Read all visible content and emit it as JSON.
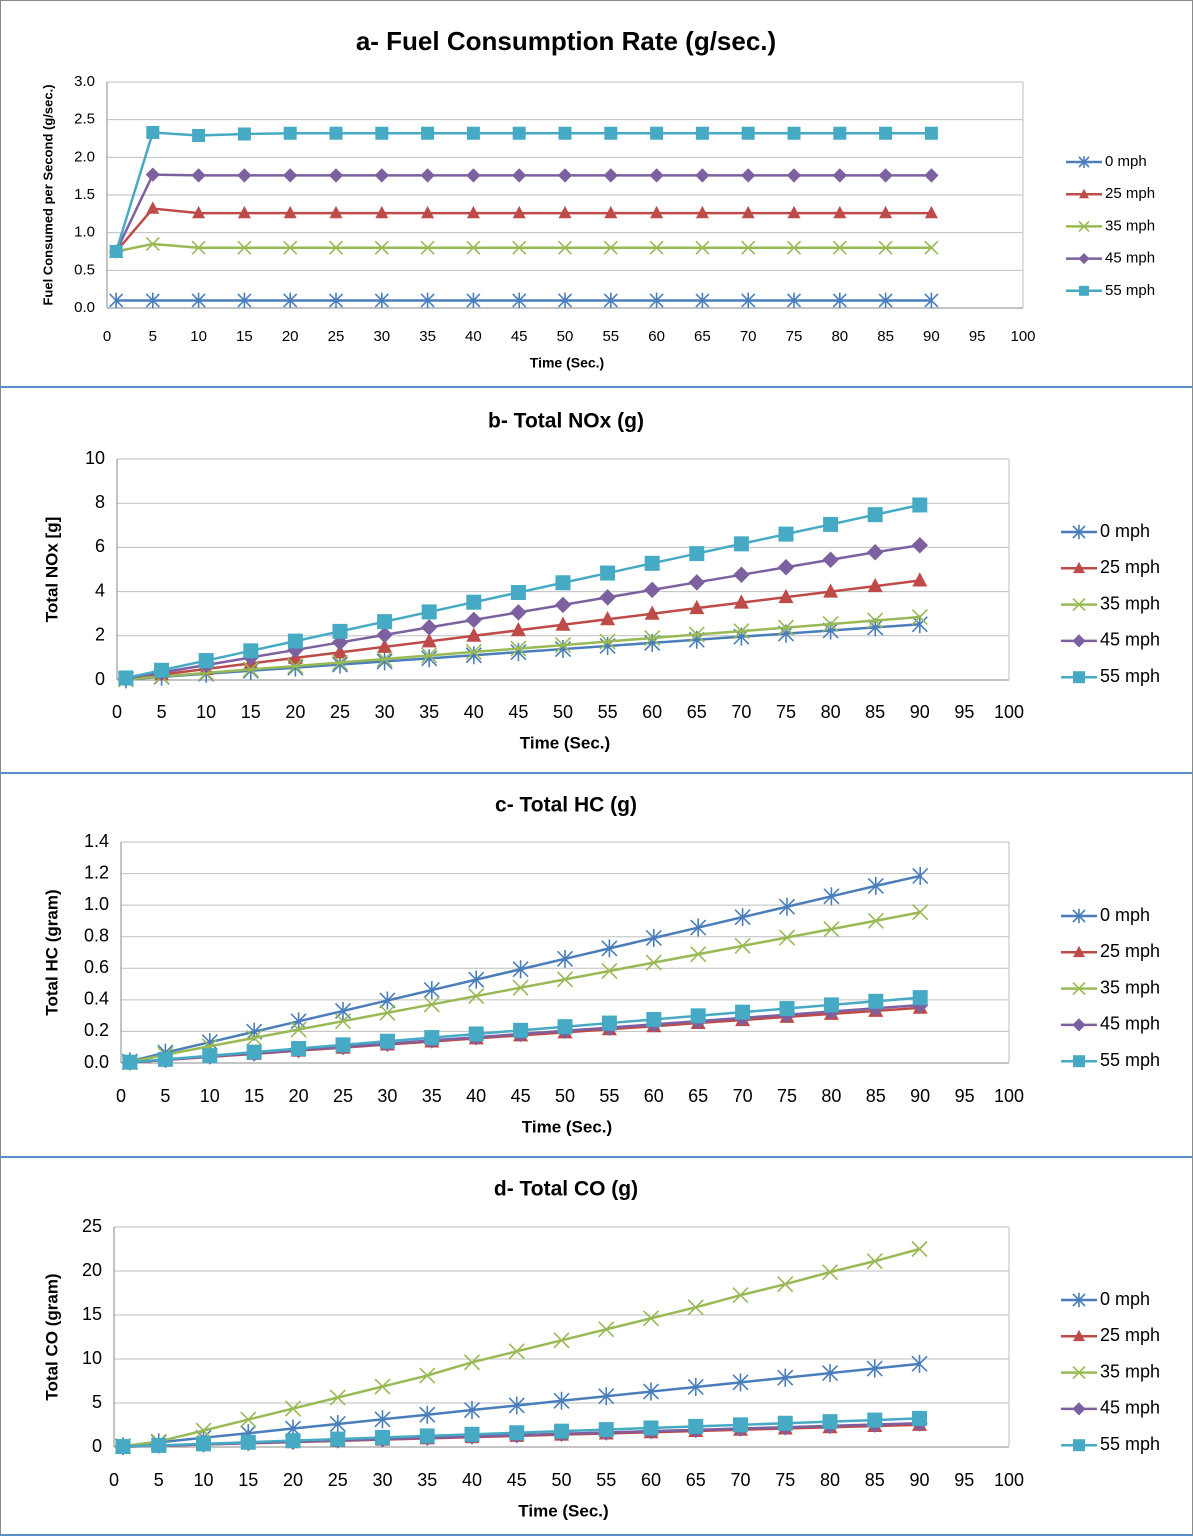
{
  "colors": {
    "0 mph": "#4a7ebb",
    "25 mph": "#be4b48",
    "35 mph": "#98b954",
    "45 mph": "#7d60a0",
    "55 mph": "#46aac5"
  },
  "chart_data": [
    {
      "type": "line",
      "title": "a- Fuel Consumption Rate (g/sec.)",
      "xlabel": "Time (Sec.)",
      "ylabel": "Fuel Consumed per Second (g/sec.)",
      "xlim": [
        0,
        100
      ],
      "ylim": [
        0,
        3
      ],
      "xticks": [
        "0",
        "5",
        "10",
        "15",
        "20",
        "25",
        "30",
        "35",
        "40",
        "45",
        "50",
        "55",
        "60",
        "65",
        "70",
        "75",
        "80",
        "85",
        "90",
        "95",
        "100"
      ],
      "yticks": [
        "0.0",
        "0.5",
        "1.0",
        "1.5",
        "2.0",
        "2.5",
        "3.0"
      ],
      "grid": true,
      "legend": "right",
      "x": [
        1,
        5,
        10,
        15,
        20,
        25,
        30,
        35,
        40,
        45,
        50,
        55,
        60,
        65,
        70,
        75,
        80,
        85,
        90
      ],
      "series": [
        {
          "name": "0 mph",
          "marker": "asterisk",
          "values": [
            0.1,
            0.1,
            0.1,
            0.1,
            0.1,
            0.1,
            0.1,
            0.1,
            0.1,
            0.1,
            0.1,
            0.1,
            0.1,
            0.1,
            0.1,
            0.1,
            0.1,
            0.1,
            0.1
          ]
        },
        {
          "name": "25 mph",
          "marker": "triangle",
          "values": [
            0.75,
            1.32,
            1.26,
            1.26,
            1.26,
            1.26,
            1.26,
            1.26,
            1.26,
            1.26,
            1.26,
            1.26,
            1.26,
            1.26,
            1.26,
            1.26,
            1.26,
            1.26,
            1.26
          ]
        },
        {
          "name": "35 mph",
          "marker": "x",
          "values": [
            0.75,
            0.85,
            0.8,
            0.8,
            0.8,
            0.8,
            0.8,
            0.8,
            0.8,
            0.8,
            0.8,
            0.8,
            0.8,
            0.8,
            0.8,
            0.8,
            0.8,
            0.8,
            0.8
          ]
        },
        {
          "name": "45 mph",
          "marker": "diamond",
          "values": [
            0.75,
            1.77,
            1.76,
            1.76,
            1.76,
            1.76,
            1.76,
            1.76,
            1.76,
            1.76,
            1.76,
            1.76,
            1.76,
            1.76,
            1.76,
            1.76,
            1.76,
            1.76,
            1.76
          ]
        },
        {
          "name": "55 mph",
          "marker": "square",
          "values": [
            0.75,
            2.33,
            2.29,
            2.31,
            2.32,
            2.32,
            2.32,
            2.32,
            2.32,
            2.32,
            2.32,
            2.32,
            2.32,
            2.32,
            2.32,
            2.32,
            2.32,
            2.32,
            2.32
          ]
        }
      ]
    },
    {
      "type": "line",
      "title": "b- Total NOx (g)",
      "xlabel": "Time (Sec.)",
      "ylabel": "Total NOx [g]",
      "xlim": [
        0,
        100
      ],
      "ylim": [
        0,
        10
      ],
      "xticks": [
        "0",
        "5",
        "10",
        "15",
        "20",
        "25",
        "30",
        "35",
        "40",
        "45",
        "50",
        "55",
        "60",
        "65",
        "70",
        "75",
        "80",
        "85",
        "90",
        "95",
        "100"
      ],
      "yticks": [
        "0",
        "2",
        "4",
        "6",
        "8",
        "10"
      ],
      "grid": true,
      "legend": "right",
      "x": [
        1,
        5,
        10,
        15,
        20,
        25,
        30,
        35,
        40,
        45,
        50,
        55,
        60,
        65,
        70,
        75,
        80,
        85,
        90
      ],
      "series": [
        {
          "name": "0 mph",
          "marker": "asterisk",
          "values": [
            0.03,
            0.14,
            0.28,
            0.42,
            0.56,
            0.7,
            0.84,
            0.98,
            1.12,
            1.26,
            1.4,
            1.54,
            1.68,
            1.82,
            1.96,
            2.1,
            2.24,
            2.38,
            2.52
          ]
        },
        {
          "name": "25 mph",
          "marker": "triangle",
          "values": [
            0.05,
            0.25,
            0.5,
            0.75,
            1.0,
            1.25,
            1.5,
            1.75,
            2.0,
            2.25,
            2.5,
            2.75,
            3.0,
            3.25,
            3.5,
            3.75,
            4.0,
            4.25,
            4.5
          ]
        },
        {
          "name": "35 mph",
          "marker": "x",
          "values": [
            0.03,
            0.16,
            0.32,
            0.48,
            0.63,
            0.79,
            0.95,
            1.11,
            1.27,
            1.42,
            1.58,
            1.74,
            1.9,
            2.06,
            2.21,
            2.37,
            2.53,
            2.69,
            2.85
          ]
        },
        {
          "name": "45 mph",
          "marker": "diamond",
          "values": [
            0.07,
            0.34,
            0.68,
            1.02,
            1.36,
            1.7,
            2.04,
            2.38,
            2.72,
            3.06,
            3.4,
            3.74,
            4.08,
            4.42,
            4.76,
            5.1,
            5.44,
            5.78,
            6.1
          ]
        },
        {
          "name": "55 mph",
          "marker": "square",
          "values": [
            0.09,
            0.44,
            0.88,
            1.32,
            1.76,
            2.2,
            2.64,
            3.08,
            3.52,
            3.96,
            4.4,
            4.84,
            5.28,
            5.72,
            6.16,
            6.6,
            7.04,
            7.48,
            7.92
          ]
        }
      ]
    },
    {
      "type": "line",
      "title": "c- Total HC (g)",
      "xlabel": "Time (Sec.)",
      "ylabel": "Total HC (gram)",
      "xlim": [
        0,
        100
      ],
      "ylim": [
        0,
        1.4
      ],
      "xticks": [
        "0",
        "5",
        "10",
        "15",
        "20",
        "25",
        "30",
        "35",
        "40",
        "45",
        "50",
        "55",
        "60",
        "65",
        "70",
        "75",
        "80",
        "85",
        "90",
        "95",
        "100"
      ],
      "yticks": [
        "0.0",
        "0.2",
        "0.4",
        "0.6",
        "0.8",
        "1.0",
        "1.2",
        "1.4"
      ],
      "grid": true,
      "legend": "right",
      "x": [
        1,
        5,
        10,
        15,
        20,
        25,
        30,
        35,
        40,
        45,
        50,
        55,
        60,
        65,
        70,
        75,
        80,
        85,
        90
      ],
      "series": [
        {
          "name": "0 mph",
          "marker": "asterisk",
          "values": [
            0.01,
            0.066,
            0.132,
            0.198,
            0.264,
            0.33,
            0.396,
            0.462,
            0.528,
            0.594,
            0.66,
            0.726,
            0.792,
            0.858,
            0.924,
            0.99,
            1.056,
            1.122,
            1.185
          ]
        },
        {
          "name": "25 mph",
          "marker": "triangle",
          "values": [
            0.004,
            0.019,
            0.039,
            0.058,
            0.078,
            0.097,
            0.117,
            0.136,
            0.156,
            0.175,
            0.194,
            0.214,
            0.233,
            0.253,
            0.272,
            0.292,
            0.311,
            0.33,
            0.35
          ]
        },
        {
          "name": "35 mph",
          "marker": "x",
          "values": [
            0.005,
            0.053,
            0.106,
            0.159,
            0.212,
            0.265,
            0.318,
            0.371,
            0.424,
            0.477,
            0.53,
            0.583,
            0.636,
            0.689,
            0.742,
            0.795,
            0.848,
            0.901,
            0.955
          ]
        },
        {
          "name": "45 mph",
          "marker": "diamond",
          "values": [
            0.004,
            0.02,
            0.041,
            0.061,
            0.082,
            0.102,
            0.122,
            0.143,
            0.163,
            0.184,
            0.204,
            0.224,
            0.245,
            0.265,
            0.286,
            0.306,
            0.326,
            0.347,
            0.367
          ]
        },
        {
          "name": "55 mph",
          "marker": "square",
          "values": [
            0.005,
            0.023,
            0.046,
            0.069,
            0.092,
            0.115,
            0.138,
            0.161,
            0.184,
            0.207,
            0.23,
            0.253,
            0.276,
            0.299,
            0.322,
            0.345,
            0.368,
            0.391,
            0.414
          ]
        }
      ]
    },
    {
      "type": "line",
      "title": "d- Total CO (g)",
      "xlabel": "Time (Sec.)",
      "ylabel": "Total CO (gram)",
      "xlim": [
        0,
        100
      ],
      "ylim": [
        0,
        25
      ],
      "xticks": [
        "0",
        "5",
        "10",
        "15",
        "20",
        "25",
        "30",
        "35",
        "40",
        "45",
        "50",
        "55",
        "60",
        "65",
        "70",
        "75",
        "80",
        "85",
        "90",
        "95",
        "100"
      ],
      "yticks": [
        "0",
        "5",
        "10",
        "15",
        "20",
        "25"
      ],
      "grid": true,
      "legend": "right",
      "x": [
        1,
        5,
        10,
        15,
        20,
        25,
        30,
        35,
        40,
        45,
        50,
        55,
        60,
        65,
        70,
        75,
        80,
        85,
        90
      ],
      "series": [
        {
          "name": "0 mph",
          "marker": "asterisk",
          "values": [
            0.1,
            0.52,
            1.05,
            1.57,
            2.1,
            2.62,
            3.15,
            3.67,
            4.2,
            4.72,
            5.25,
            5.77,
            6.3,
            6.82,
            7.35,
            7.87,
            8.4,
            8.92,
            9.45
          ]
        },
        {
          "name": "25 mph",
          "marker": "triangle",
          "values": [
            0.03,
            0.14,
            0.28,
            0.42,
            0.56,
            0.7,
            0.84,
            0.98,
            1.12,
            1.26,
            1.4,
            1.54,
            1.68,
            1.82,
            1.96,
            2.1,
            2.24,
            2.38,
            2.52
          ]
        },
        {
          "name": "35 mph",
          "marker": "x",
          "values": [
            0.1,
            0.62,
            1.87,
            3.12,
            4.37,
            5.62,
            6.87,
            8.12,
            9.62,
            10.87,
            12.12,
            13.37,
            14.62,
            15.87,
            17.25,
            18.5,
            19.87,
            21.12,
            22.5
          ]
        },
        {
          "name": "45 mph",
          "marker": "diamond",
          "values": [
            0.03,
            0.15,
            0.3,
            0.45,
            0.6,
            0.75,
            0.9,
            1.05,
            1.2,
            1.35,
            1.5,
            1.65,
            1.8,
            1.95,
            2.1,
            2.25,
            2.4,
            2.55,
            2.7
          ]
        },
        {
          "name": "55 mph",
          "marker": "square",
          "values": [
            0.05,
            0.18,
            0.36,
            0.54,
            0.72,
            0.9,
            1.08,
            1.26,
            1.44,
            1.62,
            1.8,
            1.98,
            2.16,
            2.34,
            2.52,
            2.7,
            2.88,
            3.06,
            3.25
          ]
        }
      ]
    }
  ]
}
